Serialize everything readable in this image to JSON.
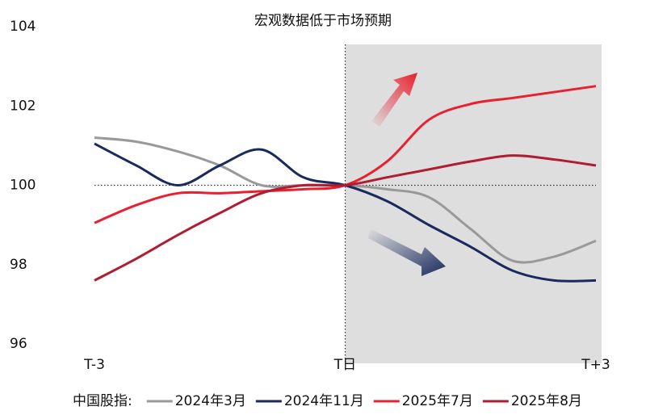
{
  "chart_data": {
    "type": "line",
    "title": "宏观数据低于市场预期",
    "x": [
      -3,
      -2.5,
      -2,
      -1.5,
      -1,
      -0.5,
      0,
      0.5,
      1,
      1.5,
      2,
      2.5,
      3
    ],
    "series": [
      {
        "name": "2024年3月",
        "color": "#999999",
        "values": [
          101.2,
          101.1,
          100.85,
          100.5,
          100.0,
          100.0,
          100.0,
          99.9,
          99.7,
          98.9,
          98.1,
          98.2,
          98.6
        ]
      },
      {
        "name": "2024年11月",
        "color": "#1b2a5c",
        "values": [
          101.05,
          100.5,
          100.0,
          100.5,
          100.9,
          100.2,
          100.0,
          99.6,
          99.0,
          98.45,
          97.85,
          97.6,
          97.6
        ]
      },
      {
        "name": "2025年7月",
        "color": "#e8202f",
        "values": [
          99.05,
          99.5,
          99.8,
          99.8,
          99.85,
          99.9,
          100.0,
          100.6,
          101.65,
          102.05,
          102.2,
          102.35,
          102.5
        ]
      },
      {
        "name": "2025年8月",
        "color": "#b01c30",
        "values": [
          97.6,
          98.15,
          98.75,
          99.3,
          99.8,
          100.0,
          100.0,
          100.2,
          100.4,
          100.6,
          100.75,
          100.65,
          100.5
        ]
      }
    ],
    "xlim": [
      -3,
      3
    ],
    "ylim": [
      96,
      104
    ],
    "xticks": [
      {
        "value": -3,
        "label": "T-3"
      },
      {
        "value": 0,
        "label": "T日"
      },
      {
        "value": 3,
        "label": "T+3"
      }
    ],
    "yticks": [
      96,
      98,
      100,
      102,
      104
    ],
    "baseline": 100,
    "reference_x": 0,
    "legend_title": "中国股指:",
    "legend": "bottom"
  }
}
